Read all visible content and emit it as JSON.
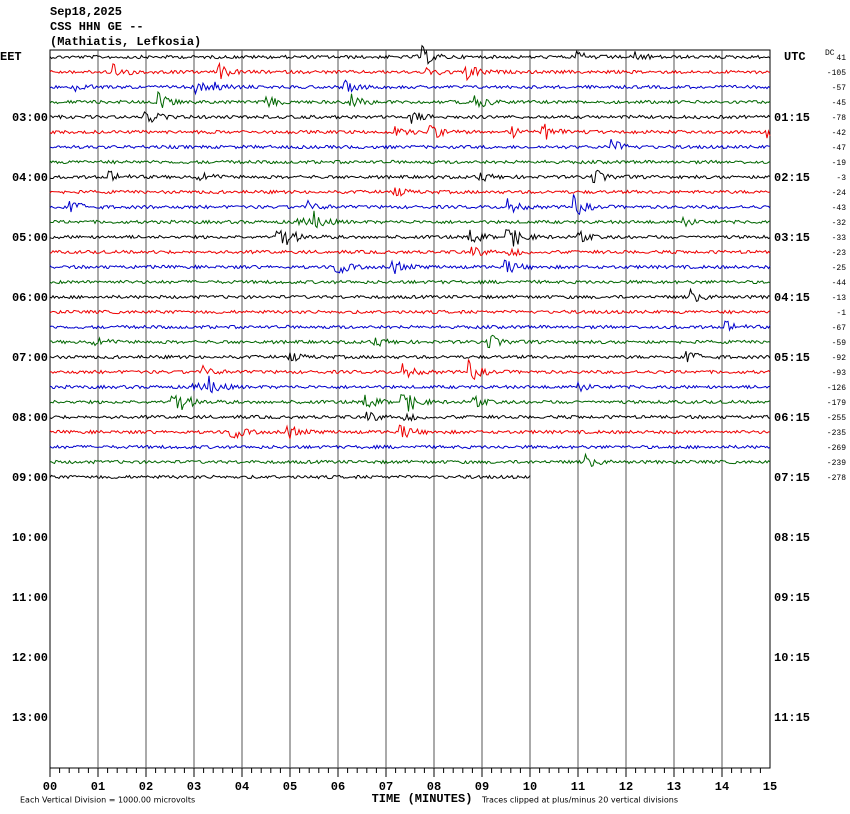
{
  "header": {
    "date": "Sep18,2025",
    "station": "CSS HHN GE --",
    "location": "(Mathiatis, Lefkosia)"
  },
  "left_zone": "EET",
  "right_zone": "UTC",
  "dc_label": "DC",
  "left_times": [
    "03:00",
    "04:00",
    "05:00",
    "06:00",
    "07:00",
    "08:00",
    "09:00",
    "10:00",
    "11:00",
    "12:00",
    "13:00"
  ],
  "right_times": [
    "01:15",
    "02:15",
    "03:15",
    "04:15",
    "05:15",
    "06:15",
    "07:15",
    "08:15",
    "09:15",
    "10:15",
    "11:15"
  ],
  "dc_offsets": [
    41,
    -105,
    -57,
    -45,
    -78,
    -42,
    -47,
    -19,
    -3,
    -24,
    -43,
    -32,
    -33,
    -23,
    -25,
    -44,
    -13,
    -1,
    -67,
    -59,
    -92,
    -93,
    -126,
    -179,
    -255,
    -235,
    -269,
    -239,
    -278
  ],
  "x_ticks": [
    "00",
    "01",
    "02",
    "03",
    "04",
    "05",
    "06",
    "07",
    "08",
    "09",
    "10",
    "11",
    "12",
    "13",
    "14",
    "15"
  ],
  "footer": {
    "scale": "Each Vertical Division = 1000.00 microvolts",
    "x_label": "TIME (MINUTES)",
    "clip": "Traces clipped at plus/minus 20 vertical divisions"
  }
}
